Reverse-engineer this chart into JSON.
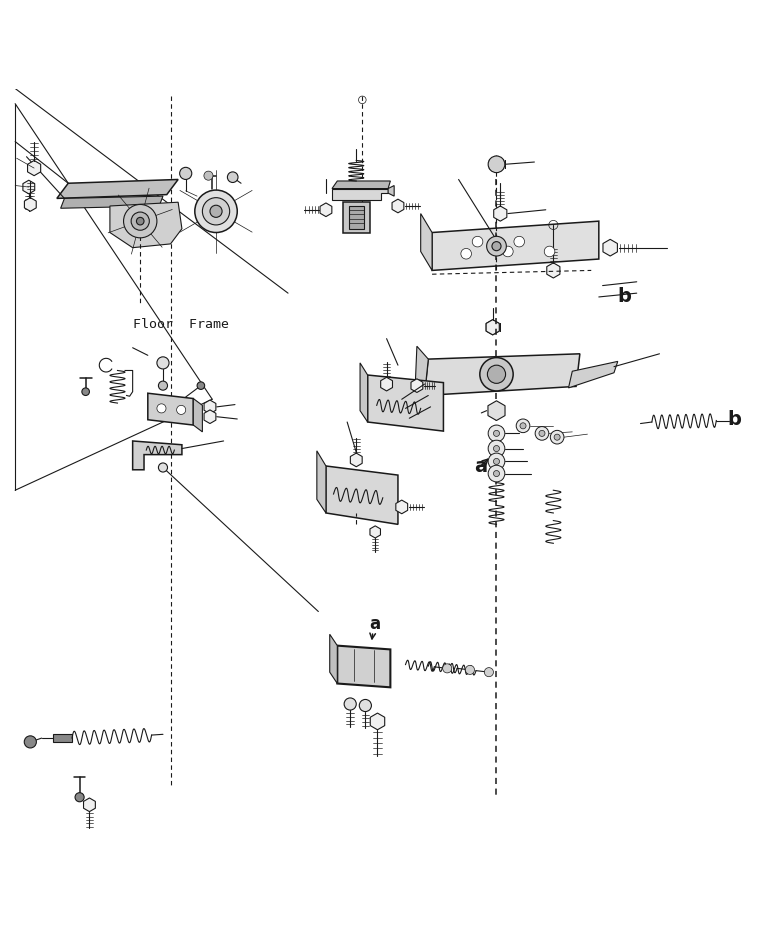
{
  "background_color": "#ffffff",
  "line_color": "#1a1a1a",
  "fig_width": 7.58,
  "fig_height": 9.37,
  "dpi": 100,
  "floor_frame_label": "Floor  Frame",
  "label_a": "a",
  "label_b": "b"
}
